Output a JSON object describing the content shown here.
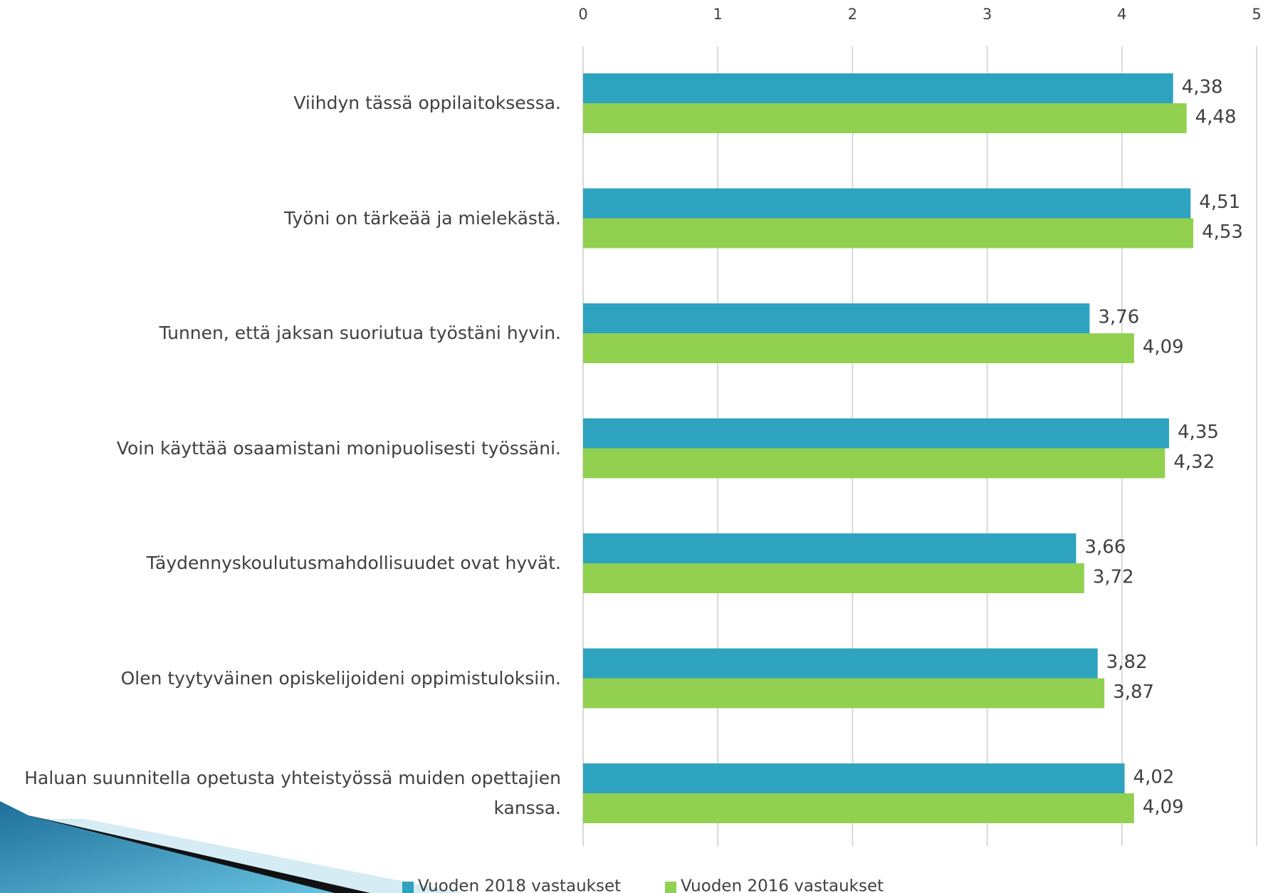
{
  "chart_data": {
    "type": "bar",
    "orientation": "horizontal",
    "categories": [
      "Viihdyn tässä oppilaitoksessa.",
      "Työni on tärkeää ja mielekästä.",
      "Tunnen, että jaksan suoriutua työstäni hyvin.",
      "Voin käyttää osaamistani monipuolisesti työssäni.",
      "Täydennyskoulutusmahdollisuudet ovat hyvät.",
      "Olen tyytyväinen opiskelijoideni oppimistuloksiin.",
      "Haluan suunnitella opetusta yhteistyössä muiden opettajien kanssa."
    ],
    "series": [
      {
        "name": "Vuoden 2018 vastaukset",
        "color": "#2ea3bf",
        "values": [
          4.38,
          4.51,
          3.76,
          4.35,
          3.66,
          3.82,
          4.02
        ],
        "value_labels": [
          "4,38",
          "4,51",
          "3,76",
          "4,35",
          "3,66",
          "3,82",
          "4,02"
        ]
      },
      {
        "name": "Vuoden 2016 vastaukset",
        "color": "#92d050",
        "values": [
          4.48,
          4.53,
          4.09,
          4.32,
          3.72,
          3.87,
          4.09
        ],
        "value_labels": [
          "4,48",
          "4,53",
          "4,09",
          "4,32",
          "3,72",
          "3,87",
          "4,09"
        ]
      }
    ],
    "xlim": [
      0,
      5
    ],
    "xticks": [
      0,
      1,
      2,
      3,
      4,
      5
    ],
    "grid": true,
    "legend": "bottom"
  }
}
